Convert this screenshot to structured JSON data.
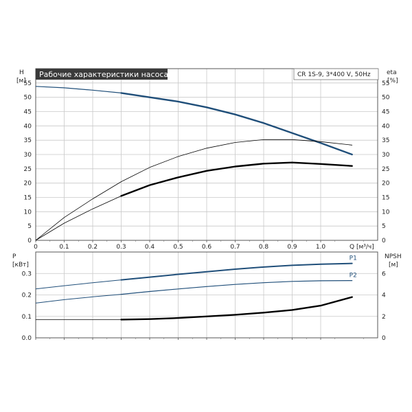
{
  "title": "Рабочие характеристики насоса",
  "pump_label": "CR 1S-9, 3*400 V, 50Hz",
  "colors": {
    "title_bg": "#3a3a3a",
    "title_fg": "#ffffff",
    "blue": "#1f4e79",
    "black": "#000000",
    "grid": "#c8c8c8"
  },
  "chart_data": [
    {
      "type": "line",
      "name": "upper",
      "ylabel_left": [
        "H",
        "[м]"
      ],
      "ylabel_right": [
        "eta",
        "[%]"
      ],
      "xlabel": "Q [м³/ч]",
      "xlim": [
        0,
        1.2
      ],
      "ylim": [
        0,
        60
      ],
      "x_ticks": [
        0,
        0.1,
        0.2,
        0.3,
        0.4,
        0.5,
        0.6,
        0.7,
        0.8,
        0.9,
        1.0
      ],
      "x_tick_labels": [
        "0",
        "0.1",
        "0.2",
        "0.3",
        "0.4",
        "0.5",
        "0.6",
        "0.7",
        "0.8",
        "0.9",
        "1.0"
      ],
      "y_ticks": [
        0,
        5,
        10,
        15,
        20,
        25,
        30,
        35,
        40,
        45,
        50,
        55
      ],
      "y_tick_labels": [
        "0",
        "5",
        "10",
        "15",
        "20",
        "25",
        "30",
        "35",
        "40",
        "45",
        "50",
        "55"
      ],
      "grid": true,
      "series": [
        {
          "color": "#1f4e79",
          "width_thin": 1.2,
          "width_thick": 2.4,
          "thick_from": 0.3,
          "x": [
            0,
            0.1,
            0.2,
            0.3,
            0.4,
            0.5,
            0.6,
            0.7,
            0.8,
            0.9,
            1.0,
            1.11
          ],
          "y": [
            53.8,
            53.3,
            52.5,
            51.5,
            50.0,
            48.5,
            46.5,
            44.0,
            41.0,
            37.5,
            34.0,
            30.0
          ]
        },
        {
          "color": "#000000",
          "width_thin": 0.8,
          "width_thick": 0.8,
          "thick_from": 0.3,
          "x": [
            0,
            0.1,
            0.2,
            0.3,
            0.4,
            0.5,
            0.6,
            0.7,
            0.8,
            0.9,
            1.0,
            1.11
          ],
          "y": [
            0,
            8.0,
            14.5,
            20.5,
            25.5,
            29.3,
            32.2,
            34.2,
            35.2,
            35.2,
            34.5,
            33.3
          ]
        },
        {
          "color": "#000000",
          "width_thin": 0.8,
          "width_thick": 2.4,
          "thick_from": 0.3,
          "x": [
            0,
            0.1,
            0.2,
            0.3,
            0.4,
            0.5,
            0.6,
            0.7,
            0.8,
            0.9,
            1.0,
            1.11
          ],
          "y": [
            0,
            6.0,
            11.0,
            15.5,
            19.3,
            22.0,
            24.3,
            25.8,
            26.8,
            27.2,
            26.7,
            26.0
          ]
        }
      ]
    },
    {
      "type": "line",
      "name": "lower",
      "ylabel_left": [
        "P",
        "[кВт]"
      ],
      "ylabel_right": [
        "NPSH",
        "[м]"
      ],
      "xlim": [
        0,
        1.2
      ],
      "ylim": [
        0,
        0.4
      ],
      "x_ticks": [
        0,
        0.1,
        0.2,
        0.3,
        0.4,
        0.5,
        0.6,
        0.7,
        0.8,
        0.9,
        1.0
      ],
      "y_ticks": [
        0,
        0.1,
        0.2,
        0.3
      ],
      "y_tick_labels": [
        "0.0",
        "0.1",
        "0.2",
        "0.3"
      ],
      "y2_ticks": [
        0,
        2,
        4,
        6
      ],
      "y2_tick_labels": [
        "0",
        "2",
        "4",
        "6"
      ],
      "y2lim": [
        0,
        8
      ],
      "grid": true,
      "series": [
        {
          "label": "P1",
          "color": "#1f4e79",
          "width_thin": 1.0,
          "width_thick": 2.0,
          "thick_from": 0.3,
          "x": [
            0,
            0.1,
            0.2,
            0.3,
            0.4,
            0.5,
            0.6,
            0.7,
            0.8,
            0.9,
            1.0,
            1.11
          ],
          "y": [
            0.228,
            0.243,
            0.257,
            0.27,
            0.283,
            0.296,
            0.308,
            0.32,
            0.33,
            0.338,
            0.343,
            0.347
          ]
        },
        {
          "label": "P2",
          "color": "#1f4e79",
          "width_thin": 1.0,
          "width_thick": 1.2,
          "thick_from": 0.3,
          "x": [
            0,
            0.1,
            0.2,
            0.3,
            0.4,
            0.5,
            0.6,
            0.7,
            0.8,
            0.9,
            1.0,
            1.11
          ],
          "y": [
            0.162,
            0.178,
            0.191,
            0.203,
            0.216,
            0.228,
            0.239,
            0.249,
            0.257,
            0.263,
            0.266,
            0.267
          ]
        },
        {
          "color": "#000000",
          "width_thin": 0.8,
          "width_thick": 2.4,
          "thick_from": 0.3,
          "axis": "right",
          "x": [
            0,
            0.1,
            0.2,
            0.3,
            0.4,
            0.5,
            0.6,
            0.7,
            0.8,
            0.9,
            1.0,
            1.11
          ],
          "y": [
            1.7,
            1.7,
            1.7,
            1.7,
            1.75,
            1.85,
            2.0,
            2.15,
            2.35,
            2.6,
            3.0,
            3.8
          ]
        }
      ]
    }
  ]
}
